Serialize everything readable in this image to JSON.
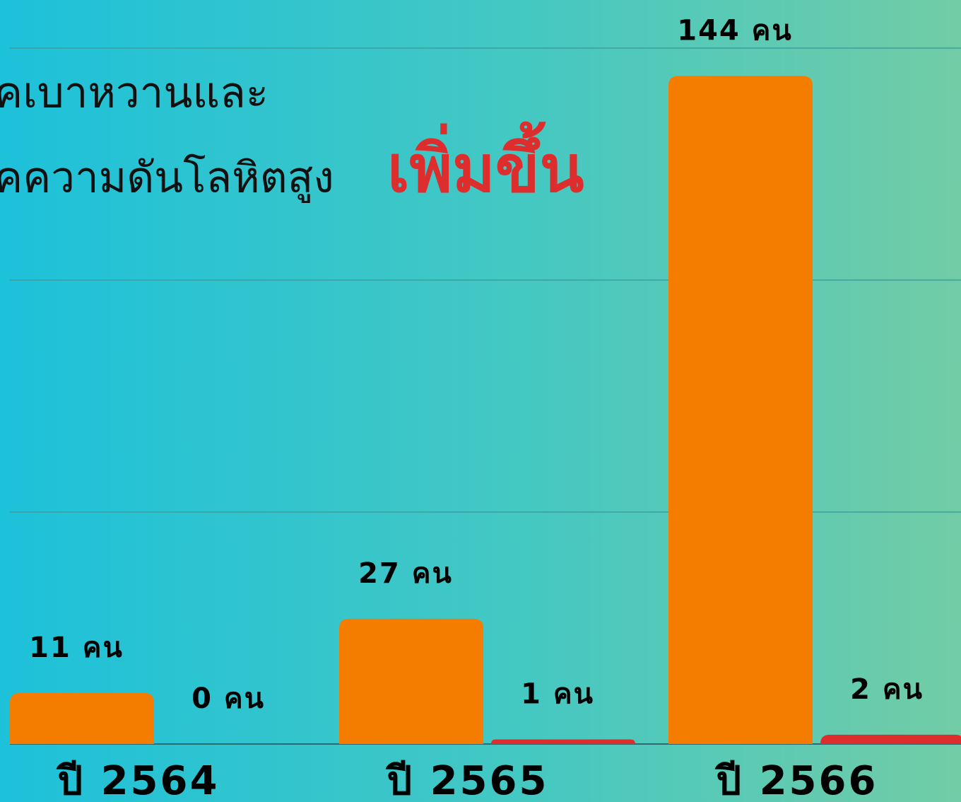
{
  "chart_data": {
    "type": "bar",
    "title": [
      "คเบาหวานและ",
      "คความดันโลหิตสูง"
    ],
    "title_highlight": "เพิ่มขึ้น",
    "categories": [
      "ปี 2564",
      "ปี 2565",
      "ปี 2566"
    ],
    "series": [
      {
        "color": "#f47d00",
        "values": [
          11,
          27,
          144
        ],
        "value_labels": [
          "11 คน",
          "27 คน",
          "144 คน"
        ]
      },
      {
        "color": "#dd2d2d",
        "values": [
          0,
          1,
          2
        ],
        "value_labels": [
          "0 คน",
          "1 คน",
          "2 คน"
        ]
      }
    ],
    "ylim": [
      0,
      150
    ],
    "yticks": [
      0,
      50,
      100,
      150
    ],
    "grid": true
  }
}
